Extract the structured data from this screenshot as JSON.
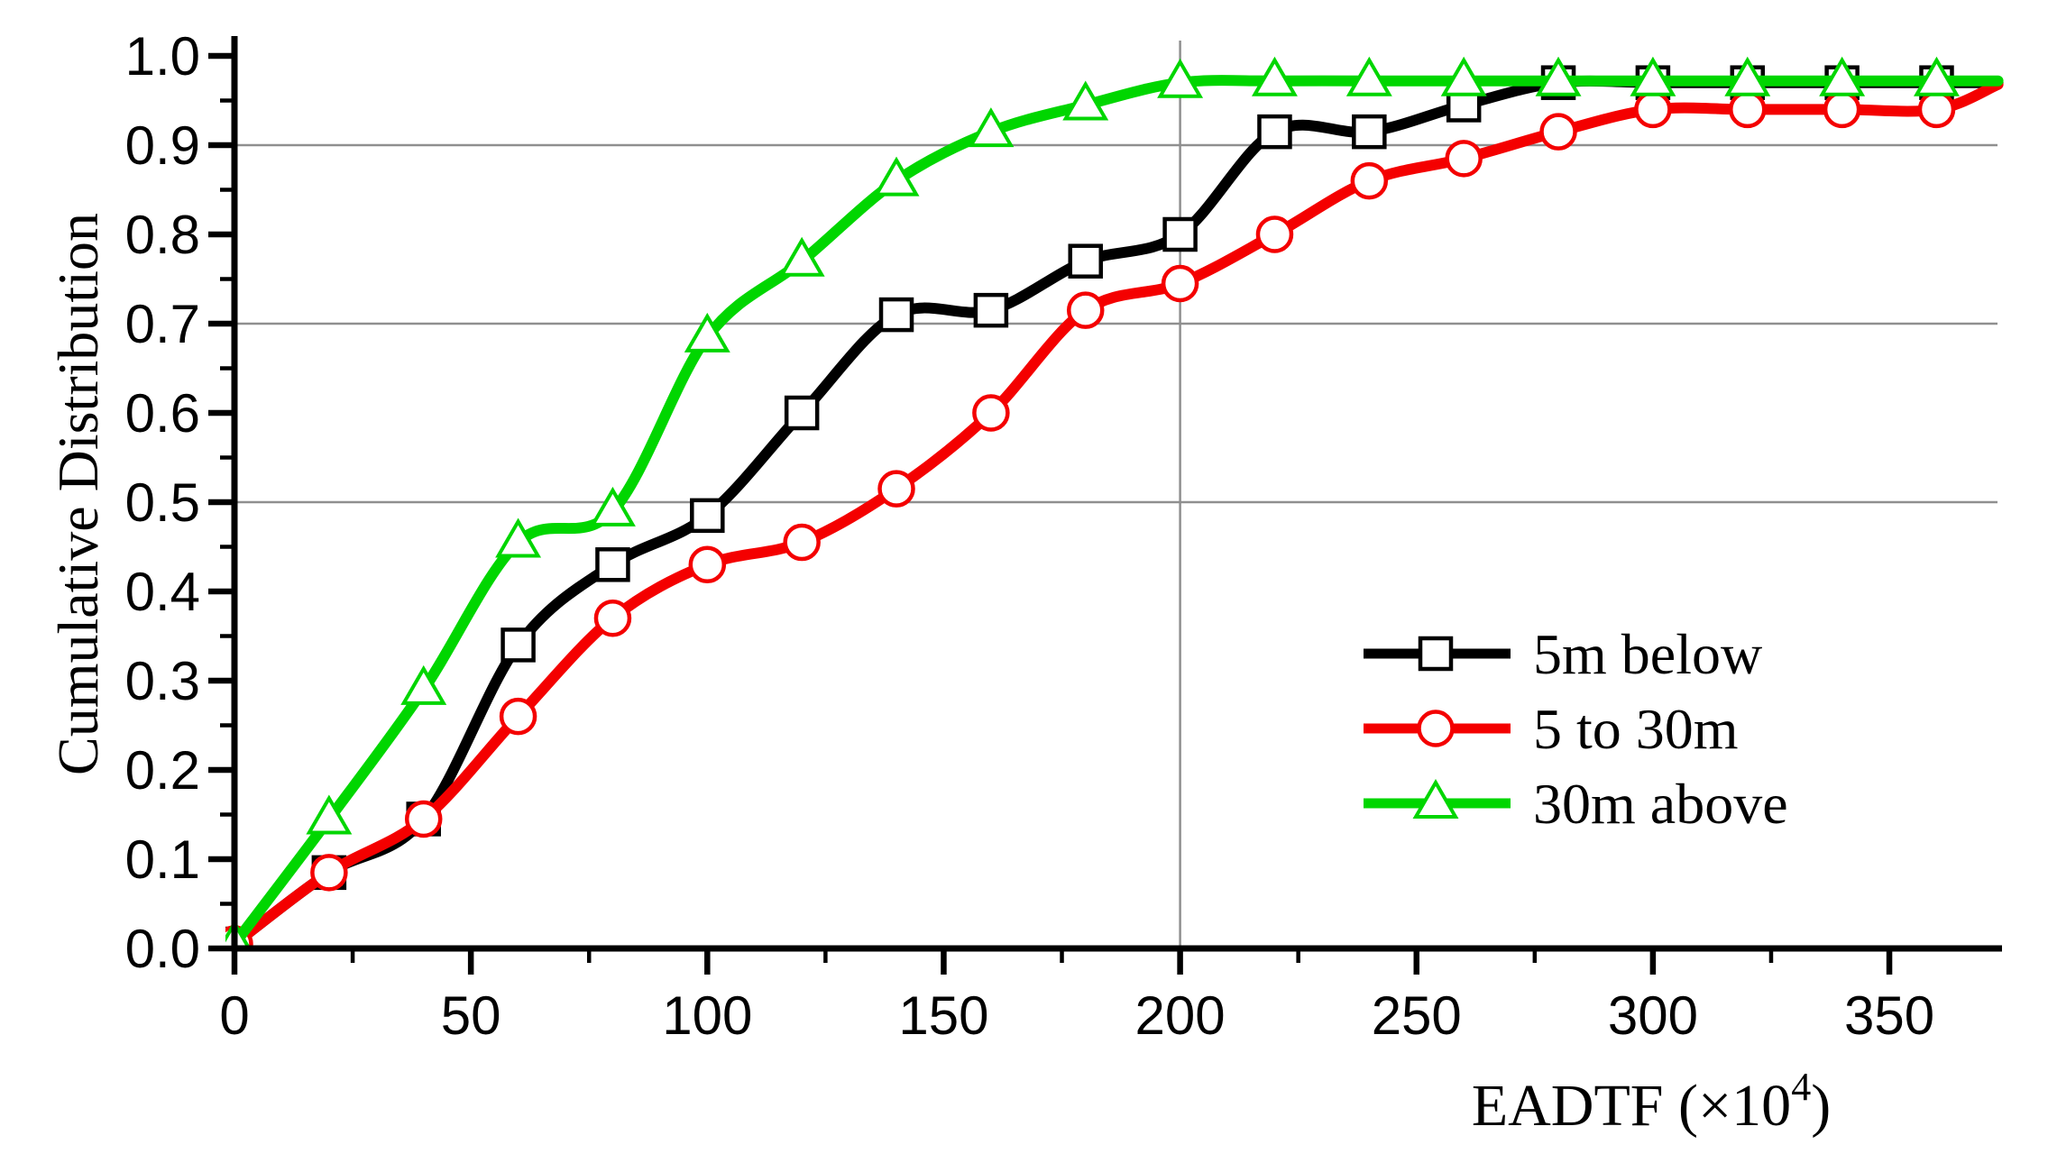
{
  "figure": {
    "background_color": "#ffffff",
    "frame_style": "L-shaped axes (left and bottom only)"
  },
  "chart_data": {
    "type": "line",
    "title": "",
    "xlabel": "EADTF (×10⁴)",
    "xlabel_parts": {
      "prefix": "EADTF (×10",
      "sup": "4",
      "suffix": ")"
    },
    "ylabel": "Cumulative Distribution",
    "x_axis": {
      "min": 0,
      "max": 375,
      "major_tick_step": 50,
      "minor_tick_step": 25,
      "major_ticks": [
        0,
        50,
        100,
        150,
        200,
        250,
        300,
        350
      ],
      "minor_ticks": [
        25,
        75,
        125,
        175,
        225,
        275,
        325
      ],
      "tick_labels": [
        "0",
        "50",
        "100",
        "150",
        "200",
        "250",
        "300",
        "350"
      ]
    },
    "y_axis": {
      "min": 0.0,
      "max": 1.0,
      "major_tick_step": 0.1,
      "minor_tick_step": 0.05,
      "major_ticks": [
        0.0,
        0.1,
        0.2,
        0.3,
        0.4,
        0.5,
        0.6,
        0.7,
        0.8,
        0.9,
        1.0
      ],
      "tick_labels": [
        "0.0",
        "0.1",
        "0.2",
        "0.3",
        "0.4",
        "0.5",
        "0.6",
        "0.7",
        "0.8",
        "0.9",
        "1.0"
      ]
    },
    "gridlines": {
      "horizontal_at": [
        0.5,
        0.7,
        0.9
      ],
      "vertical_at": [
        200
      ],
      "color": "#8f8f8f",
      "width": 2.5
    },
    "legend": {
      "position": "right-middle",
      "entries": [
        "5m below",
        "5 to 30m",
        "30m above"
      ]
    },
    "series": [
      {
        "name": "5m below",
        "color": "#000000",
        "marker": "square",
        "marker_fill": "#ffffff",
        "x": [
          0,
          20,
          40,
          60,
          80,
          100,
          120,
          140,
          160,
          180,
          200,
          220,
          240,
          260,
          280,
          300,
          320,
          340,
          360,
          373
        ],
        "y": [
          0.005,
          0.085,
          0.145,
          0.34,
          0.43,
          0.485,
          0.6,
          0.71,
          0.715,
          0.77,
          0.8,
          0.915,
          0.915,
          0.945,
          0.97,
          0.97,
          0.97,
          0.97,
          0.97,
          0.97
        ],
        "last_point_is_line_end_without_marker": true
      },
      {
        "name": "5 to 30m",
        "color": "#f40000",
        "marker": "circle",
        "marker_fill": "#ffffff",
        "x": [
          0,
          20,
          40,
          60,
          80,
          100,
          120,
          140,
          160,
          180,
          200,
          220,
          240,
          260,
          280,
          300,
          320,
          340,
          360,
          373
        ],
        "y": [
          0.005,
          0.085,
          0.145,
          0.26,
          0.37,
          0.43,
          0.455,
          0.515,
          0.6,
          0.715,
          0.745,
          0.8,
          0.86,
          0.885,
          0.915,
          0.94,
          0.94,
          0.94,
          0.94,
          0.968
        ],
        "last_point_is_line_end_without_marker": true
      },
      {
        "name": "30m above",
        "color": "#00d600",
        "marker": "triangle",
        "marker_fill": "#ffffff",
        "x": [
          0,
          20,
          40,
          60,
          80,
          100,
          120,
          140,
          160,
          180,
          200,
          220,
          240,
          260,
          280,
          300,
          320,
          340,
          360,
          373
        ],
        "y": [
          0.005,
          0.145,
          0.29,
          0.455,
          0.49,
          0.685,
          0.77,
          0.86,
          0.915,
          0.945,
          0.97,
          0.972,
          0.972,
          0.972,
          0.972,
          0.972,
          0.972,
          0.972,
          0.972,
          0.972
        ],
        "last_point_is_line_end_without_marker": true
      }
    ]
  }
}
